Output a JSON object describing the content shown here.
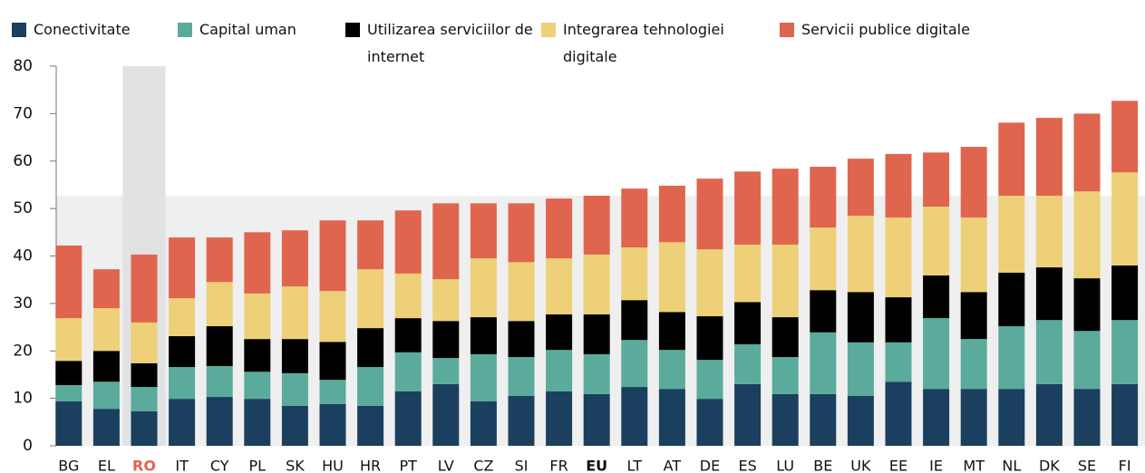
{
  "chart_data": {
    "type": "stacked_bar",
    "categories": [
      "BG",
      "EL",
      "RO",
      "IT",
      "CY",
      "PL",
      "SK",
      "HU",
      "HR",
      "PT",
      "LV",
      "CZ",
      "SI",
      "FR",
      "EU",
      "LT",
      "AT",
      "DE",
      "ES",
      "LU",
      "BE",
      "UK",
      "EE",
      "IE",
      "MT",
      "NL",
      "DK",
      "SE",
      "FI"
    ],
    "series": [
      {
        "name": "Conectivitate",
        "color": "#1b3f5e",
        "values": [
          9.4,
          7.8,
          7.3,
          9.9,
          10.3,
          9.9,
          8.4,
          8.8,
          8.4,
          11.5,
          13.0,
          9.4,
          10.5,
          11.5,
          10.9,
          12.4,
          12.0,
          9.9,
          13.0,
          10.9,
          10.9,
          10.5,
          13.5,
          12.0,
          12.0,
          12.0,
          13.0,
          12.0,
          13.0
        ]
      },
      {
        "name": "Capital uman",
        "color": "#5aab9b",
        "values": [
          3.4,
          5.7,
          5.1,
          6.7,
          6.5,
          5.7,
          6.9,
          5.1,
          8.2,
          8.2,
          5.5,
          9.9,
          8.2,
          8.7,
          8.4,
          9.9,
          8.2,
          8.2,
          8.4,
          7.8,
          13.0,
          11.3,
          8.3,
          14.9,
          10.5,
          13.2,
          13.5,
          12.2,
          13.5
        ]
      },
      {
        "name": "Utilizarea serviciilor de internet",
        "color": "#000000",
        "values": [
          5.1,
          6.5,
          5.0,
          6.5,
          8.4,
          6.9,
          7.2,
          8.0,
          8.2,
          7.2,
          7.8,
          7.8,
          7.6,
          7.5,
          8.4,
          8.4,
          8.0,
          9.2,
          8.9,
          8.4,
          8.9,
          10.6,
          9.5,
          9.0,
          9.9,
          11.3,
          11.1,
          11.1,
          11.5
        ]
      },
      {
        "name": "Integrarea tehnologiei digitale",
        "color": "#edd078",
        "values": [
          9.0,
          9.0,
          8.6,
          8.0,
          9.3,
          9.6,
          11.1,
          10.7,
          12.4,
          9.4,
          8.8,
          12.4,
          12.4,
          11.8,
          12.6,
          11.1,
          14.7,
          14.1,
          12.1,
          15.3,
          13.2,
          16.1,
          16.8,
          14.5,
          15.7,
          16.2,
          15.1,
          18.3,
          19.6
        ]
      },
      {
        "name": "Servicii publice digitale",
        "color": "#e0654f",
        "values": [
          15.3,
          8.2,
          14.3,
          12.8,
          9.4,
          12.9,
          11.8,
          14.9,
          10.3,
          13.3,
          16.0,
          11.6,
          12.4,
          12.6,
          12.4,
          12.4,
          11.9,
          14.9,
          15.4,
          16.0,
          12.8,
          12.0,
          13.4,
          11.4,
          14.9,
          15.4,
          16.4,
          16.4,
          15.1
        ]
      }
    ],
    "ylim": [
      0,
      80
    ],
    "yticks": [
      0,
      10,
      20,
      30,
      40,
      50,
      60,
      70,
      80
    ],
    "highlight": "RO",
    "reference": "EU",
    "highlight_color": "#e0654f"
  }
}
